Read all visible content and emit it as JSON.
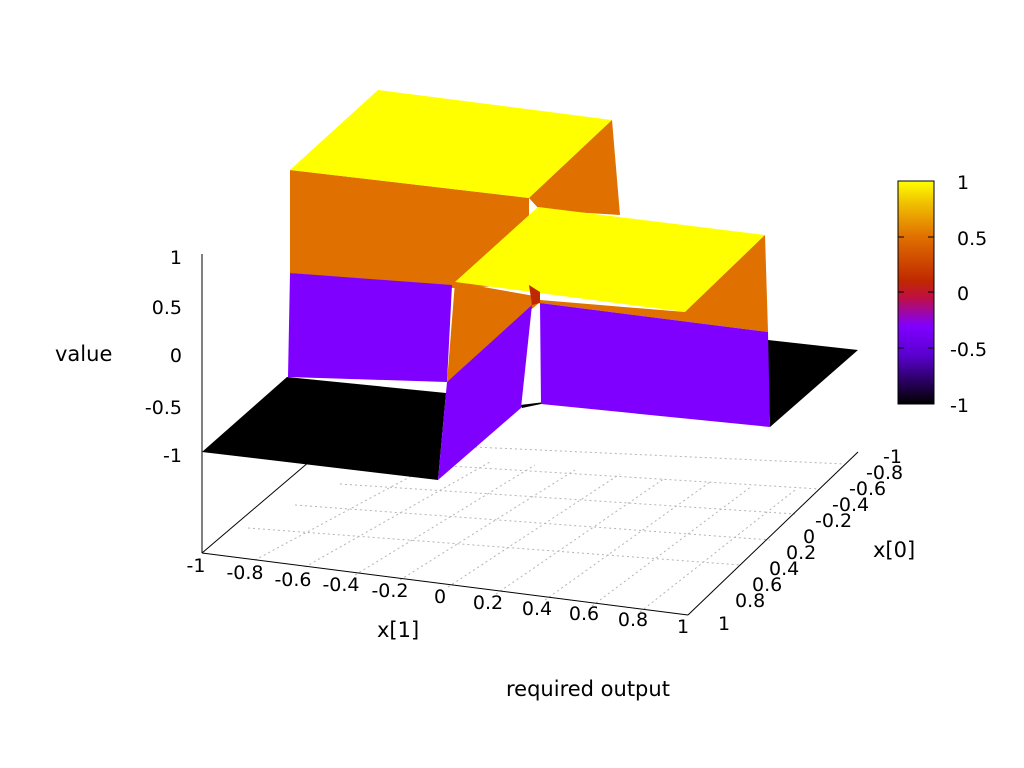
{
  "chart_data": {
    "type": "surface3d",
    "title": "",
    "legend_label": "required output",
    "xlabel": "x[1]",
    "ylabel": "x[0]",
    "zlabel": "value",
    "x_ticks": [
      "-1",
      "-0.8",
      "-0.6",
      "-0.4",
      "-0.2",
      "0",
      "0.2",
      "0.4",
      "0.6",
      "0.8",
      "1"
    ],
    "y_ticks": [
      "-1",
      "-0.8",
      "-0.6",
      "-0.4",
      "-0.2",
      "0",
      "0.2",
      "0.4",
      "0.6",
      "0.8",
      "1"
    ],
    "z_ticks": [
      "1",
      "0.5",
      "0",
      "-0.5",
      "-1"
    ],
    "colorbar_ticks": [
      "1",
      "0.5",
      "0",
      "-0.5",
      "-1"
    ],
    "xlim": [
      -1,
      1
    ],
    "ylim": [
      -1,
      1
    ],
    "zlim": [
      -1,
      1
    ],
    "colormap": [
      "#000000",
      "#6a00ff",
      "#9000ff",
      "#c02000",
      "#e07000",
      "#f0c000",
      "#ffff00"
    ],
    "grid": true,
    "values": {
      "x0_lt_0_x1_lt_0": -1,
      "x0_lt_0_x1_gt_0": 1,
      "x0_gt_0_x1_lt_0": 1,
      "x0_gt_0_x1_gt_0": -1
    }
  }
}
